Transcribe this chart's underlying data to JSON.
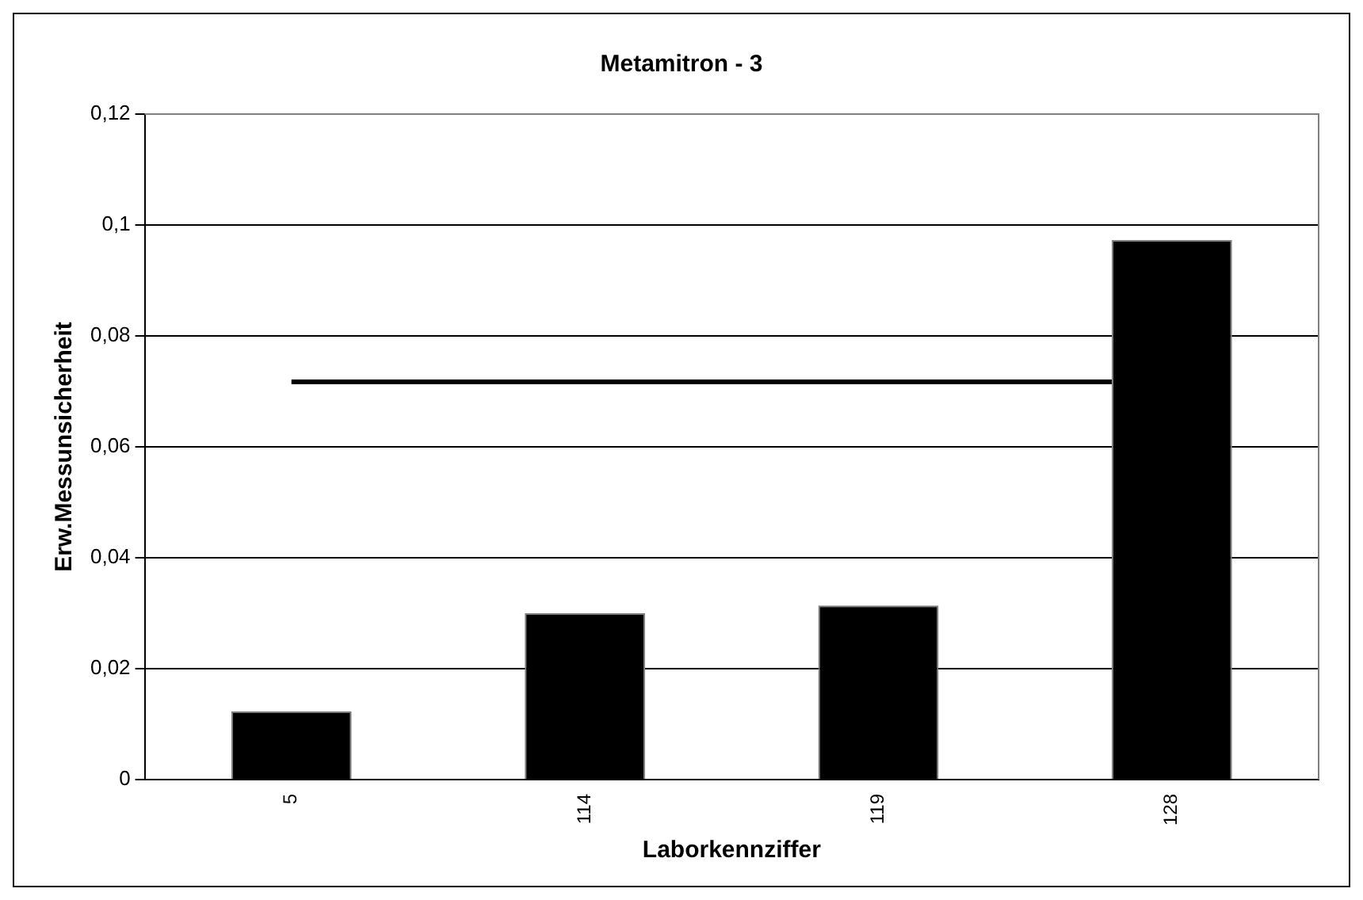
{
  "chart_data": {
    "type": "bar",
    "title": "Metamitron - 3",
    "xlabel": "Laborkennziffer",
    "ylabel": "Erw.Messunsicherheit",
    "categories": [
      "5",
      "114",
      "119",
      "128"
    ],
    "series": [
      {
        "color": "#000000",
        "values": [
          0.0123,
          0.03,
          0.0314,
          0.0973
        ]
      }
    ],
    "ref_lines": [
      {
        "axis": "y",
        "value": 0.0717,
        "color": "#000000",
        "line_style": "solid"
      }
    ],
    "ylim": [
      0,
      0.12
    ],
    "yticks": [
      {
        "value": 0,
        "label": "0"
      },
      {
        "value": 0.02,
        "label": "0,02"
      },
      {
        "value": 0.04,
        "label": "0,04"
      },
      {
        "value": 0.06,
        "label": "0,06"
      },
      {
        "value": 0.08,
        "label": "0,08"
      },
      {
        "value": 0.1,
        "label": "0,1"
      },
      {
        "value": 0.12,
        "label": "0,12"
      }
    ],
    "grid": "y",
    "legend": false
  }
}
